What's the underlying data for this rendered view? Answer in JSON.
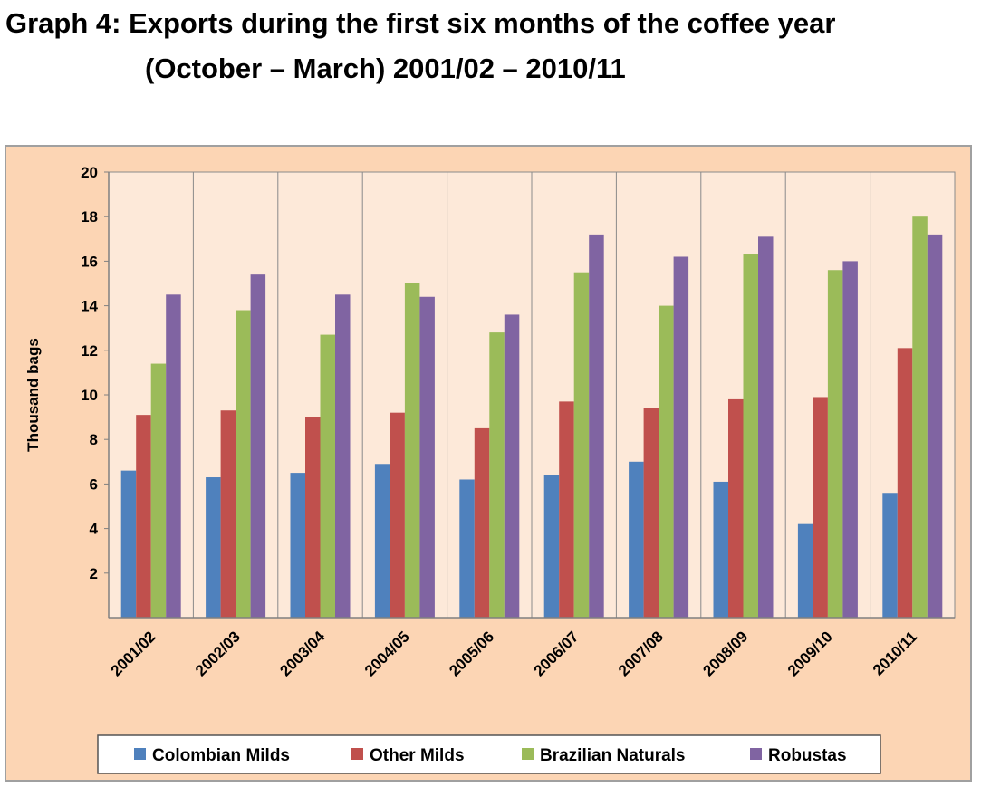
{
  "header": {
    "title_line1": "Graph 4:  Exports during the first six months of the coffee year",
    "title_line2": "(October – March) 2001/02 – 2010/11"
  },
  "chart_data": {
    "type": "bar",
    "title": "Graph 4:  Exports during the first six months of the coffee year (October – March) 2001/02 – 2010/11",
    "xlabel": "",
    "ylabel": "Thousand bags",
    "ylim": [
      0,
      20
    ],
    "yticks": [
      2,
      4,
      6,
      8,
      10,
      12,
      14,
      16,
      18,
      20
    ],
    "grid": "vertical gridlines between categories",
    "legend_position": "bottom",
    "categories": [
      "2001/02",
      "2002/03",
      "2003/04",
      "2004/05",
      "2005/06",
      "2006/07",
      "2007/08",
      "2008/09",
      "2009/10",
      "2010/11"
    ],
    "series": [
      {
        "name": "Colombian Milds",
        "color": "#4f81bd",
        "values": [
          6.6,
          6.3,
          6.5,
          6.9,
          6.2,
          6.4,
          7.0,
          6.1,
          4.2,
          5.6
        ]
      },
      {
        "name": "Other Milds",
        "color": "#c0504d",
        "values": [
          9.1,
          9.3,
          9.0,
          9.2,
          8.5,
          9.7,
          9.4,
          9.8,
          9.9,
          12.1
        ]
      },
      {
        "name": "Brazilian Naturals",
        "color": "#9bbb59",
        "values": [
          11.4,
          13.8,
          12.7,
          15.0,
          12.8,
          15.5,
          14.0,
          16.3,
          15.6,
          18.0
        ]
      },
      {
        "name": "Robustas",
        "color": "#8064a2",
        "values": [
          14.5,
          15.4,
          14.5,
          14.4,
          13.6,
          17.2,
          16.2,
          17.1,
          16.0,
          17.2
        ]
      }
    ]
  }
}
